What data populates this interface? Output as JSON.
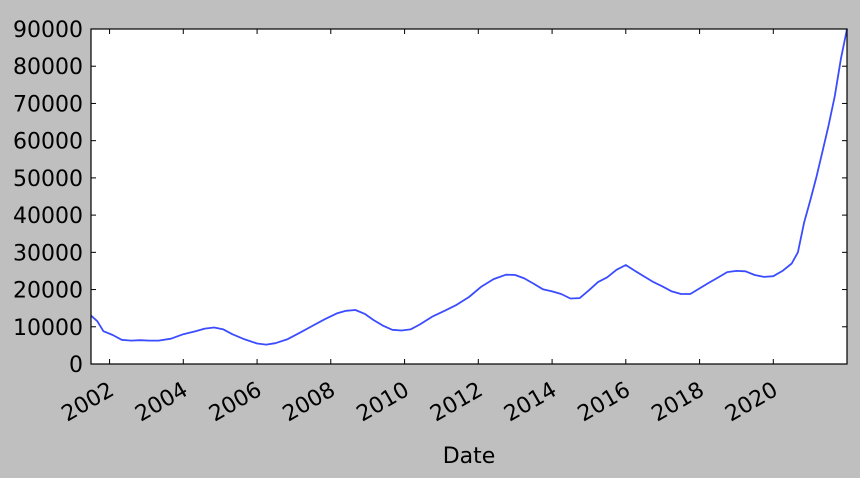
{
  "chart_data": {
    "type": "line",
    "title": "",
    "xlabel": "Date",
    "ylabel": "",
    "xlim": [
      "2001-07-01",
      "2021-12-31"
    ],
    "ylim": [
      0,
      90000
    ],
    "grid": false,
    "x_ticks": [
      "2002",
      "2004",
      "2006",
      "2008",
      "2010",
      "2012",
      "2014",
      "2016",
      "2018",
      "2020"
    ],
    "y_ticks": [
      "0",
      "10000",
      "20000",
      "30000",
      "40000",
      "50000",
      "60000",
      "70000",
      "80000",
      "90000"
    ],
    "series": [
      {
        "color": "#3b4cff",
        "x": [
          "2001-07-01",
          "2001-09-01",
          "2001-11-01",
          "2002-02-01",
          "2002-05-01",
          "2002-08-01",
          "2002-11-01",
          "2003-02-01",
          "2003-05-01",
          "2003-09-01",
          "2004-01-01",
          "2004-05-01",
          "2004-08-01",
          "2004-11-01",
          "2005-02-01",
          "2005-05-01",
          "2005-09-01",
          "2006-01-01",
          "2006-04-01",
          "2006-07-01",
          "2006-11-01",
          "2007-03-01",
          "2007-07-01",
          "2007-11-01",
          "2008-03-01",
          "2008-06-01",
          "2008-09-01",
          "2008-12-01",
          "2009-03-01",
          "2009-06-01",
          "2009-09-01",
          "2009-12-01",
          "2010-03-01",
          "2010-06-01",
          "2010-10-01",
          "2011-02-01",
          "2011-06-01",
          "2011-10-01",
          "2012-02-01",
          "2012-06-01",
          "2012-10-01",
          "2013-01-01",
          "2013-04-01",
          "2013-07-01",
          "2013-10-01",
          "2014-01-01",
          "2014-04-01",
          "2014-07-01",
          "2014-10-01",
          "2015-01-01",
          "2015-04-01",
          "2015-07-01",
          "2015-10-01",
          "2016-01-01",
          "2016-04-01",
          "2016-07-01",
          "2016-10-01",
          "2017-01-01",
          "2017-04-01",
          "2017-07-01",
          "2017-10-01",
          "2018-01-01",
          "2018-04-01",
          "2018-07-01",
          "2018-10-01",
          "2019-01-01",
          "2019-04-01",
          "2019-07-01",
          "2019-10-01",
          "2020-01-01",
          "2020-04-01",
          "2020-07-01",
          "2020-09-01",
          "2020-11-01",
          "2021-01-01",
          "2021-03-01",
          "2021-05-01",
          "2021-07-01",
          "2021-09-01",
          "2021-11-01",
          "2021-12-31"
        ],
        "values": [
          13000,
          11500,
          8800,
          7800,
          6500,
          6300,
          6400,
          6300,
          6300,
          6800,
          8000,
          8800,
          9500,
          9800,
          9300,
          8000,
          6600,
          5500,
          5200,
          5600,
          6700,
          8400,
          10200,
          12000,
          13600,
          14300,
          14500,
          13500,
          11800,
          10300,
          9200,
          9000,
          9300,
          10600,
          12700,
          14300,
          15900,
          18000,
          20800,
          22800,
          24000,
          23900,
          23000,
          21600,
          20100,
          19500,
          18800,
          17600,
          17700,
          19800,
          22000,
          23300,
          25300,
          26600,
          25000,
          23500,
          22000,
          20800,
          19500,
          18800,
          18800,
          20300,
          21800,
          23200,
          24700,
          25000,
          24900,
          23900,
          23400,
          23600,
          25000,
          27000,
          30000,
          38000,
          44000,
          50000,
          57000,
          64000,
          72000,
          82000,
          90000
        ]
      }
    ]
  }
}
